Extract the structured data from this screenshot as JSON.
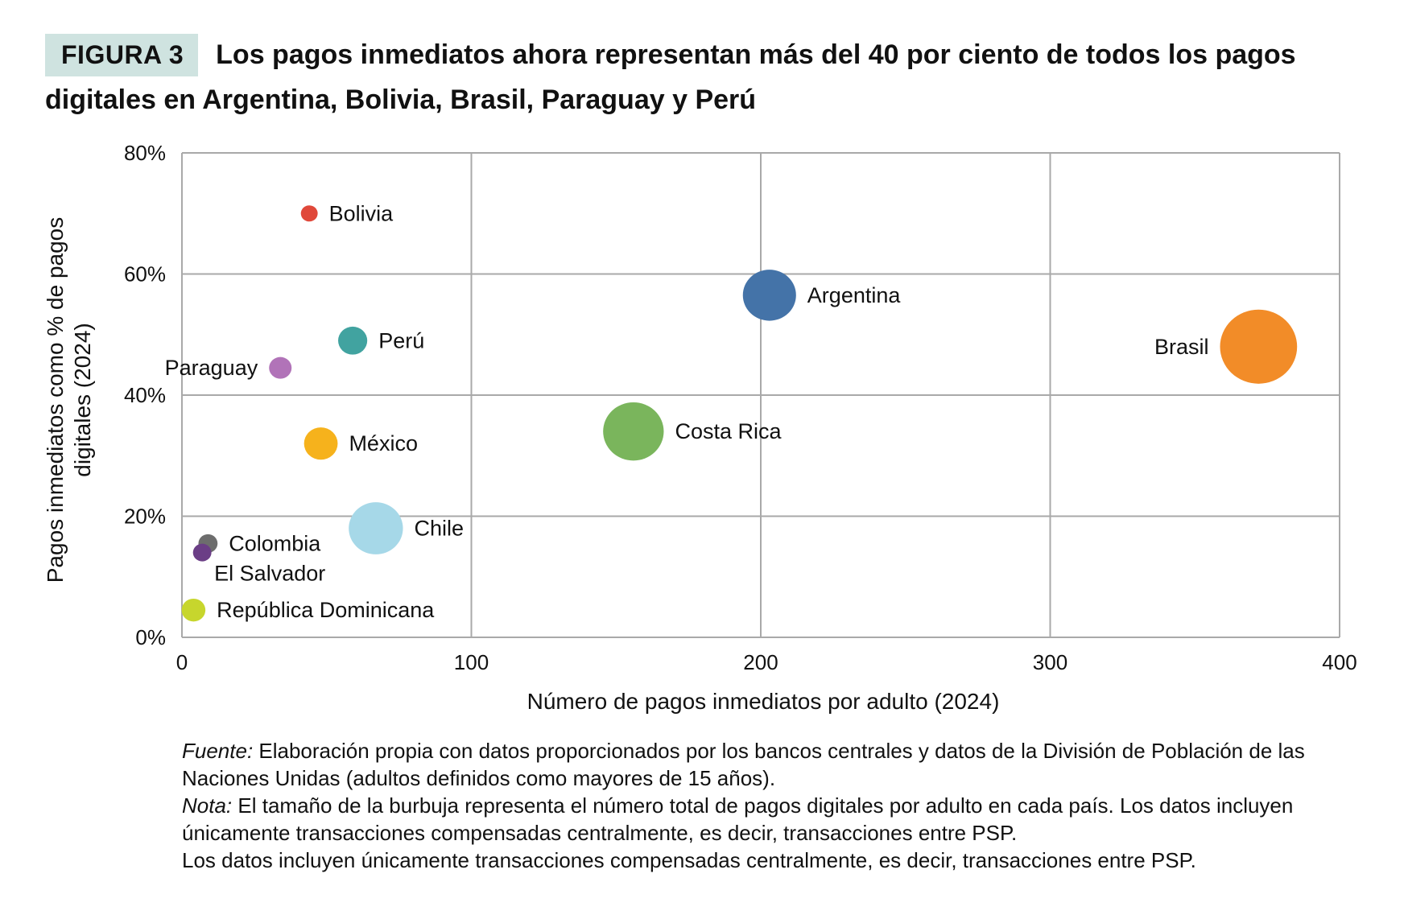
{
  "figure": {
    "label": "FIGURA 3",
    "title": "Los pagos inmediatos ahora representan más del 40 por ciento de todos los pagos digitales en Argentina, Bolivia, Brasil, Paraguay y Perú"
  },
  "chart_data": {
    "type": "scatter",
    "subtype": "bubble",
    "xlabel": "Número de pagos inmediatos por adulto (2024)",
    "ylabel_lines": [
      "Pagos inmediatos como % de pagos",
      "digitales (2024)"
    ],
    "xlim": [
      0,
      400
    ],
    "ylim": [
      0,
      80
    ],
    "x_ticks": [
      0,
      100,
      200,
      300,
      400
    ],
    "y_ticks": [
      0,
      20,
      40,
      60,
      80
    ],
    "y_tick_labels": [
      "0%",
      "20%",
      "40%",
      "60%",
      "80%"
    ],
    "grid": true,
    "bubble_size_meaning": "Número total de pagos digitales por adulto",
    "points": [
      {
        "name": "Bolivia",
        "x": 44,
        "y": 70,
        "size": 50,
        "color": "#e0483a",
        "label_pos": "right"
      },
      {
        "name": "Argentina",
        "x": 203,
        "y": 56.5,
        "size": 500,
        "color": "#4473a8",
        "label_pos": "right"
      },
      {
        "name": "Brasil",
        "x": 372,
        "y": 48,
        "size": 1050,
        "color": "#f28c28",
        "label_pos": "left"
      },
      {
        "name": "Perú",
        "x": 59,
        "y": 49,
        "size": 150,
        "color": "#41a3a0",
        "label_pos": "right"
      },
      {
        "name": "Paraguay",
        "x": 34,
        "y": 44.5,
        "size": 90,
        "color": "#b173b8",
        "label_pos": "left"
      },
      {
        "name": "México",
        "x": 48,
        "y": 32,
        "size": 200,
        "color": "#f6b21c",
        "label_pos": "right"
      },
      {
        "name": "Costa Rica",
        "x": 156,
        "y": 34,
        "size": 650,
        "color": "#7ab55c",
        "label_pos": "right"
      },
      {
        "name": "Chile",
        "x": 67,
        "y": 18,
        "size": 520,
        "color": "#a6d8e8",
        "label_pos": "right"
      },
      {
        "name": "Colombia",
        "x": 9,
        "y": 15.5,
        "size": 65,
        "color": "#6d6d6d",
        "label_pos": "right"
      },
      {
        "name": "El Salvador",
        "x": 7,
        "y": 14,
        "size": 60,
        "color": "#6b3e86",
        "label_pos": "below-right"
      },
      {
        "name": "República Dominicana",
        "x": 4,
        "y": 4.5,
        "size": 100,
        "color": "#c7d62d",
        "label_pos": "right"
      }
    ]
  },
  "notes": {
    "source_label": "Fuente:",
    "source_text": " Elaboración propia con datos proporcionados por los bancos centrales y datos de la División de Población de las Naciones Unidas (adultos definidos como mayores de 15 años).",
    "note_label": "Nota:",
    "note_text": " El tamaño de la burbuja representa el número total de pagos digitales por adulto en cada país. Los datos incluyen únicamente transacciones compensadas centralmente, es decir, transacciones entre PSP.",
    "note_repeat": "Los datos incluyen únicamente transacciones compensadas centralmente, es decir, transacciones entre PSP."
  }
}
